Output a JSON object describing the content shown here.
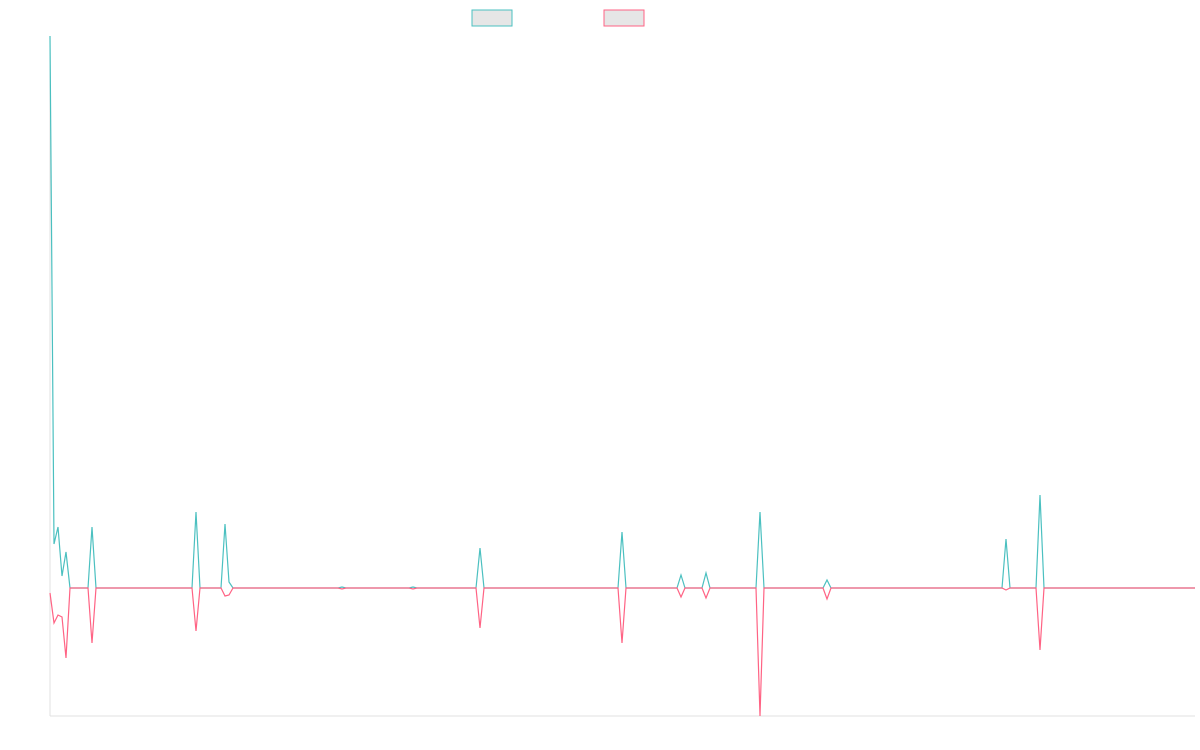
{
  "chart_data": {
    "type": "line",
    "x": [
      0,
      4,
      8,
      12,
      16,
      20,
      38,
      42,
      46,
      142,
      146,
      150,
      171,
      175,
      179,
      183,
      288,
      292,
      296,
      359,
      363,
      367,
      426,
      430,
      434,
      568,
      572,
      576,
      627,
      631,
      635,
      652,
      656,
      660,
      706,
      710,
      714,
      773,
      777,
      781,
      952,
      956,
      960,
      986,
      990,
      994,
      1145
    ],
    "xlim": [
      0,
      1145
    ],
    "ylim": [
      -128,
      552
    ],
    "series": [
      {
        "color": "#4bc0c0",
        "values": [
          552,
          44,
          61,
          12,
          36,
          0,
          0,
          61,
          0,
          0,
          76,
          0,
          0,
          64,
          6,
          0,
          0,
          1,
          0,
          0,
          1,
          0,
          0,
          40,
          0,
          0,
          56,
          0,
          0,
          13,
          0,
          0,
          15,
          0,
          0,
          76,
          0,
          0,
          8,
          0,
          0,
          49,
          0,
          0,
          93,
          0,
          0
        ]
      },
      {
        "color": "#ff6384",
        "values": [
          -5,
          -35,
          -27,
          -29,
          -70,
          0,
          0,
          -55,
          0,
          0,
          -43,
          0,
          0,
          -8,
          -7,
          0,
          0,
          -1,
          0,
          0,
          -1,
          0,
          0,
          -40,
          0,
          0,
          -55,
          0,
          0,
          -9,
          0,
          0,
          -10,
          0,
          0,
          -128,
          0,
          0,
          -11,
          0,
          0,
          -2,
          0,
          0,
          -62,
          0,
          0
        ]
      }
    ],
    "legend": "top"
  }
}
